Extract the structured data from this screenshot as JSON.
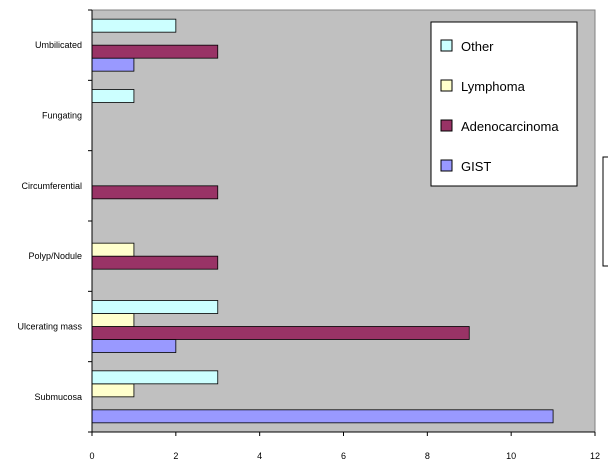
{
  "chart_data": {
    "type": "bar",
    "orientation": "horizontal",
    "categories": [
      "Submucosa",
      "Ulcerating mass",
      "Polyp/Nodule",
      "Circumferential",
      "Fungating",
      "Umbilicated"
    ],
    "series": [
      {
        "name": "GIST",
        "values": [
          11,
          2,
          0,
          0,
          0,
          1
        ],
        "color": "#9999FF"
      },
      {
        "name": "Adenocarcinoma",
        "values": [
          0,
          9,
          3,
          3,
          0,
          3
        ],
        "color": "#993366"
      },
      {
        "name": "Lymphoma",
        "values": [
          1,
          1,
          1,
          0,
          0,
          0
        ],
        "color": "#FFFFCC"
      },
      {
        "name": "Other",
        "values": [
          3,
          3,
          0,
          0,
          1,
          2
        ],
        "color": "#CCFFFF"
      }
    ],
    "legend_order": [
      "Other",
      "Lymphoma",
      "Adenocarcinoma",
      "GIST"
    ],
    "xticks": [
      "0",
      "2",
      "4",
      "6",
      "8",
      "10",
      "12"
    ],
    "xlim": [
      0,
      12
    ],
    "legend_position": "top-right",
    "plot_background": "#C0C0C0",
    "grid": false
  }
}
